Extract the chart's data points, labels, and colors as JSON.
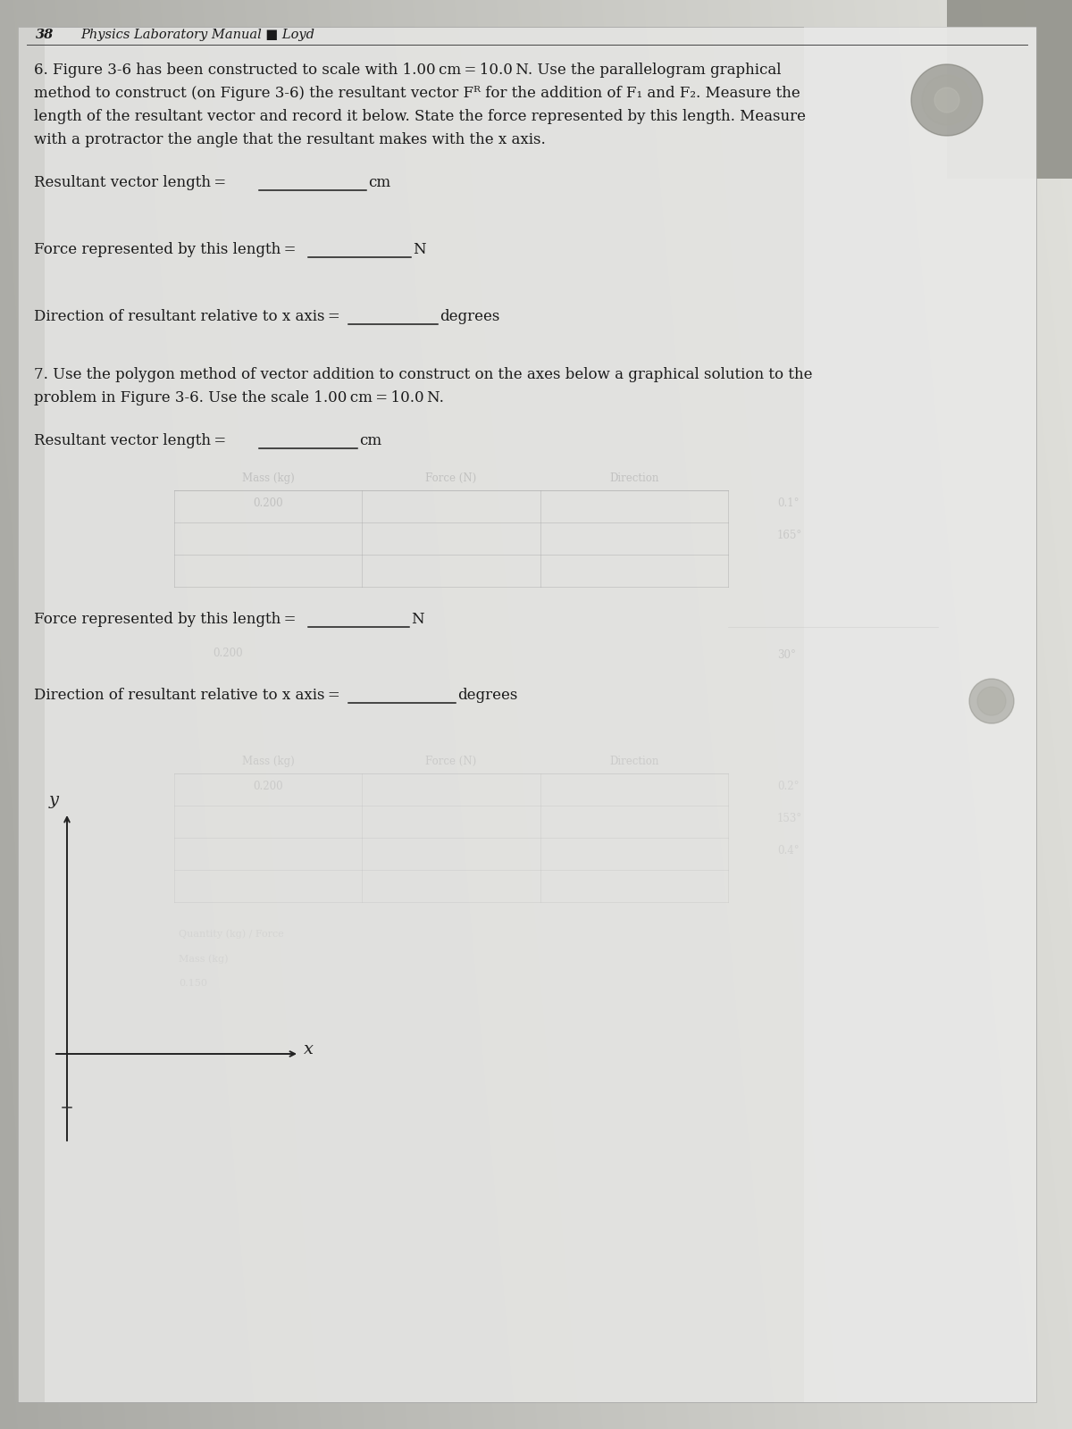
{
  "page_number": "38",
  "header": "Physics Laboratory Manual ■ Loyd",
  "q6_lines": [
    "6. Figure 3-6 has been constructed to scale with 1.00 cm = 10.0 N. Use the parallelogram graphical",
    "method to construct (on Figure 3-6) the resultant vector Fᴿ for the addition of F₁ and F₂. Measure the",
    "length of the resultant vector and record it below. State the force represented by this length. Measure",
    "with a protractor the angle that the resultant makes with the x axis."
  ],
  "q7_lines": [
    "7. Use the polygon method of vector addition to construct on the axes below a graphical solution to the",
    "problem in Figure 3-6. Use the scale 1.00 cm = 10.0 N."
  ],
  "axes_label_y": "y",
  "axes_label_x": "x",
  "bg_left": "#b8b8b8",
  "bg_right": "#d8d8d8",
  "paper_color": "#e0e0e0",
  "text_dark": "#1a1a1a",
  "text_faint": "#aaaaaa",
  "line_color": "#333333"
}
